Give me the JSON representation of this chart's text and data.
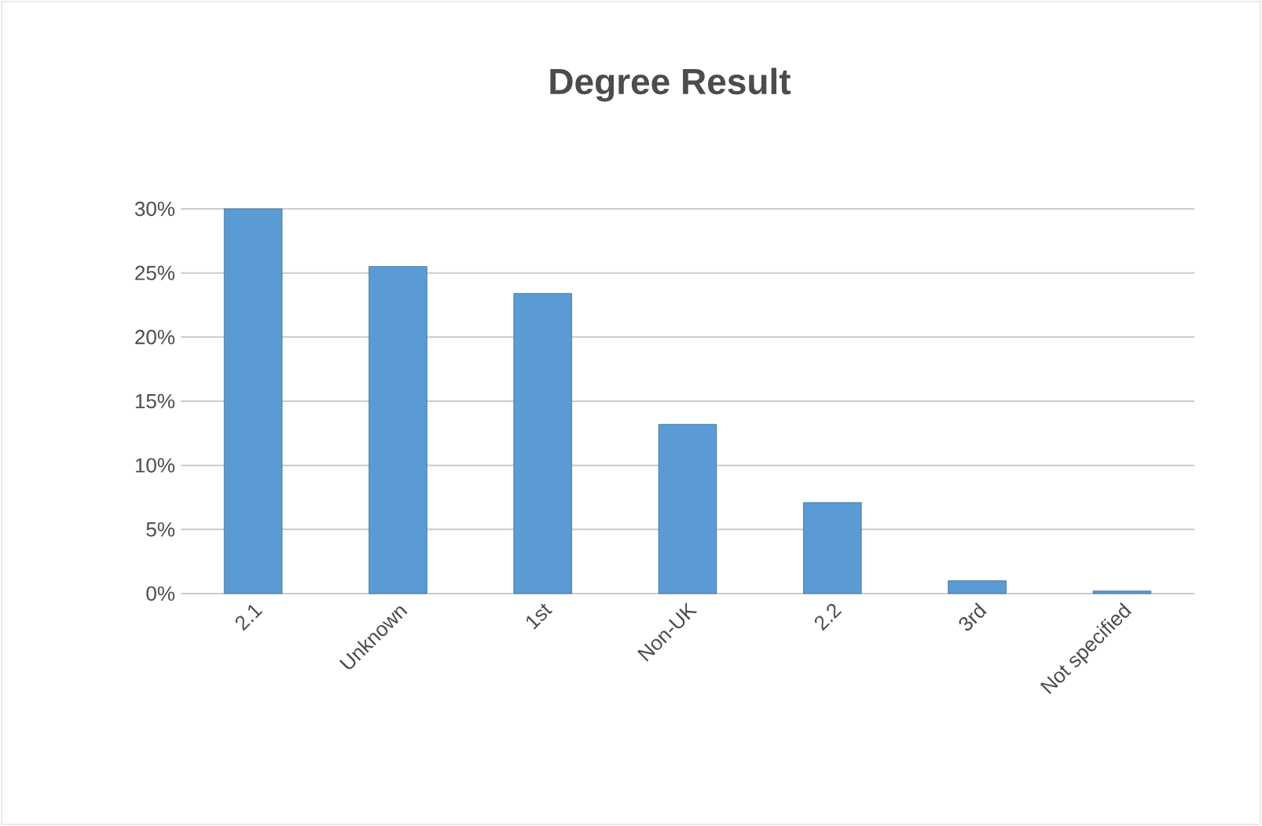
{
  "chart_data": {
    "type": "bar",
    "title": "Degree Result",
    "categories": [
      "2.1",
      "Unknown",
      "1st",
      "Non-UK",
      "2.2",
      "3rd",
      "Not specified"
    ],
    "values": [
      30,
      25.5,
      23.4,
      13.2,
      7.1,
      1.0,
      0.2
    ],
    "color": "#5b9bd5",
    "ylim": [
      0,
      30
    ],
    "yticks": [
      {
        "value": 0,
        "label": "0%"
      },
      {
        "value": 5,
        "label": "5%"
      },
      {
        "value": 10,
        "label": "10%"
      },
      {
        "value": 15,
        "label": "15%"
      },
      {
        "value": 20,
        "label": "20%"
      },
      {
        "value": 25,
        "label": "25%"
      },
      {
        "value": 30,
        "label": "30%"
      }
    ],
    "grid": "y"
  }
}
